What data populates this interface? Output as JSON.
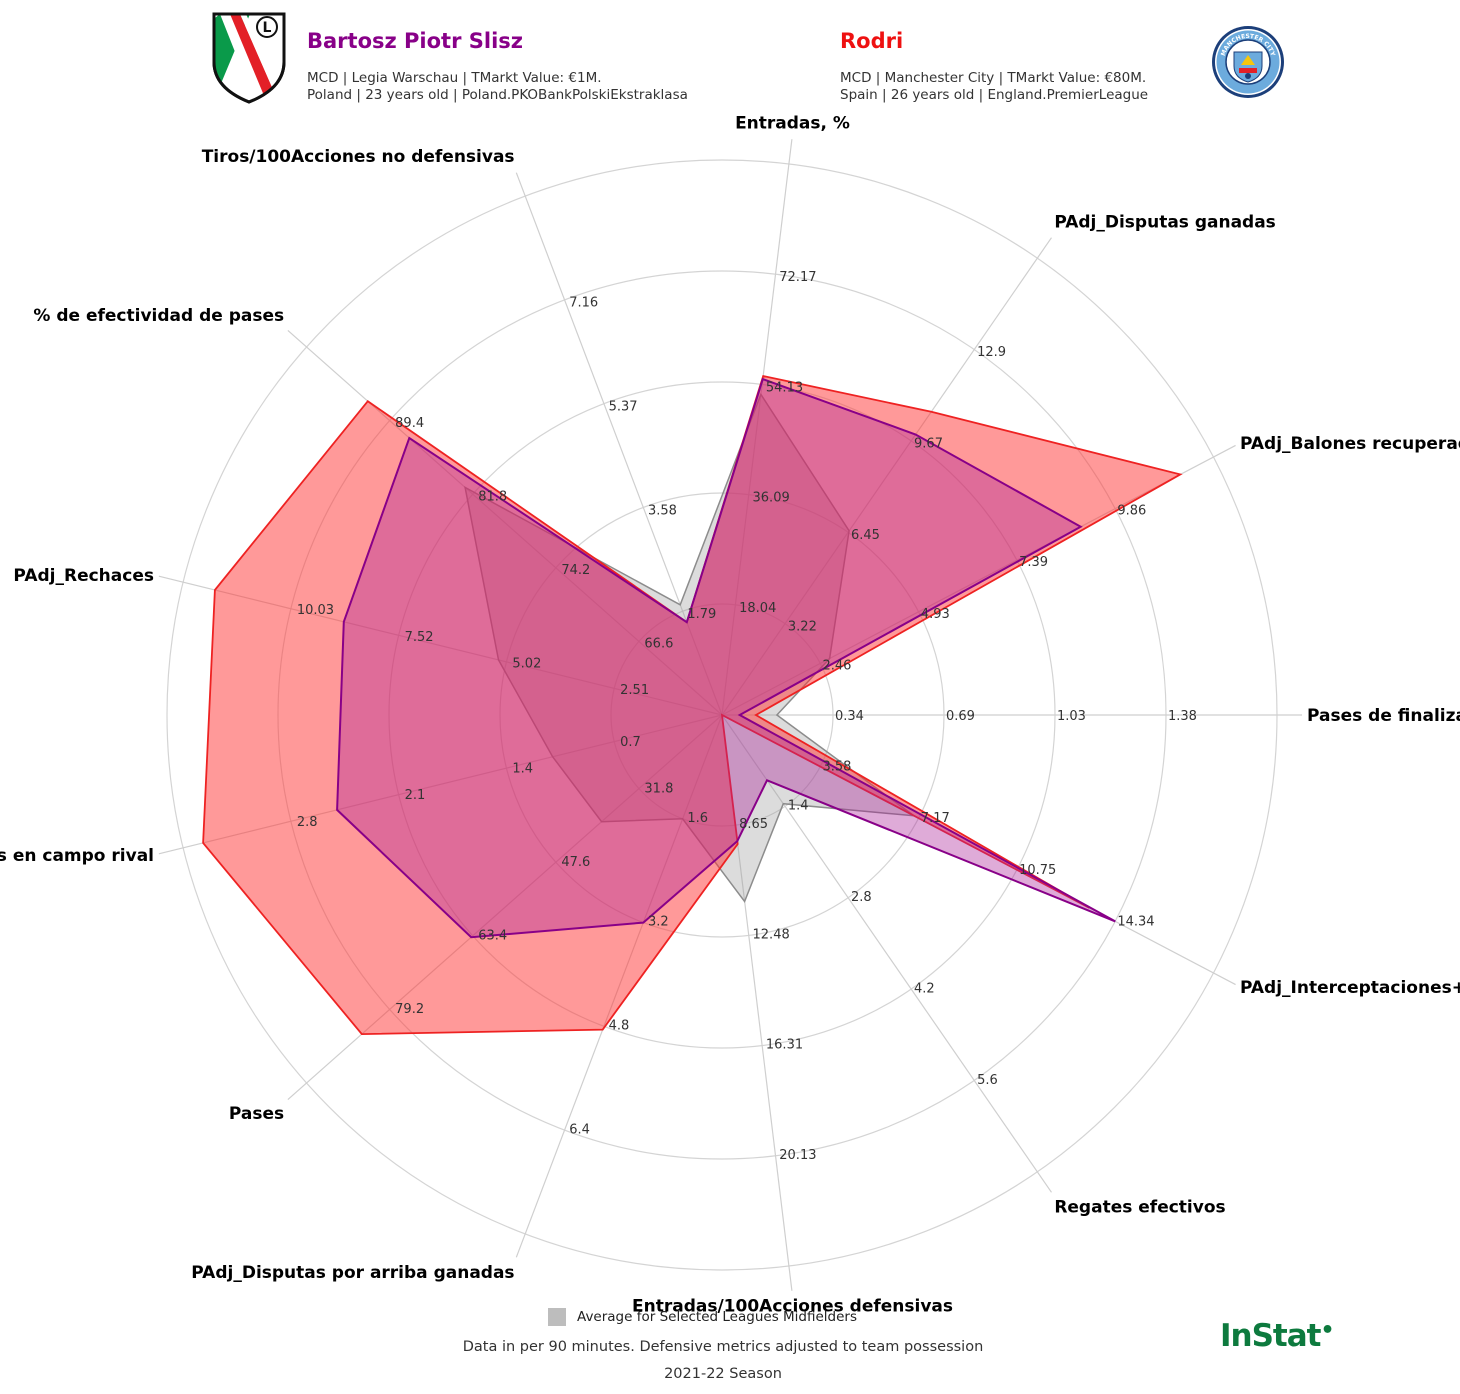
{
  "player1": {
    "name": "Bartosz Piotr Slisz",
    "line1": "MCD | Legia Warschau | TMarkt Value: €1M.",
    "line2": "Poland | 23 years old | Poland.PKOBankPolskiEkstraklasa",
    "color": "#880088"
  },
  "player2": {
    "name": "Rodri",
    "line1": "MCD | Manchester City | TMarkt Value: €80M.",
    "line2": "Spain | 26 years old | England.PremierLeague",
    "color": "#ee1111"
  },
  "crest2_text": "MANCHESTER CITY",
  "legend_label": "Average for Selected Leagues Midfielders",
  "footnote1": "Data in per 90 minutes. Defensive metrics adjusted to team possession",
  "footnote2": "2021-22 Season",
  "brand": "InStat",
  "chart_data": {
    "type": "radar",
    "metrics": [
      {
        "label": "Pases de finalización efectivos",
        "ticks": [
          "0.34",
          "0.69",
          "1.03",
          "1.38"
        ],
        "rmax": 1.72
      },
      {
        "label": "PAdj_Balones recuperados",
        "ticks": [
          "2.46",
          "4.93",
          "7.39",
          "9.86"
        ],
        "rmax": 12.33
      },
      {
        "label": "PAdj_Disputas ganadas",
        "ticks": [
          "3.22",
          "6.45",
          "9.67",
          "12.9"
        ],
        "rmax": 16.12
      },
      {
        "label": "Entradas, %",
        "ticks": [
          "18.04",
          "36.09",
          "54.13",
          "72.17"
        ],
        "rmax": 90.21
      },
      {
        "label": "Tiros/100Acciones no defensivas",
        "ticks": [
          "1.79",
          "3.58",
          "5.37",
          "7.16"
        ],
        "rmax": 8.95
      },
      {
        "label": "% de efectividad de pases",
        "ticks": [
          "66.6",
          "74.2",
          "81.8",
          "89.4"
        ],
        "rmax": 97.0,
        "rmin": 59.0
      },
      {
        "label": "PAdj_Rechaces",
        "ticks": [
          "2.51",
          "5.02",
          "7.52",
          "10.03"
        ],
        "rmax": 12.54
      },
      {
        "label": "Recuperaciones en campo rival",
        "ticks": [
          "0.7",
          "1.4",
          "2.1",
          "2.8"
        ],
        "rmax": 3.5
      },
      {
        "label": "Pases",
        "ticks": [
          "31.8",
          "47.6",
          "63.4",
          "79.2"
        ],
        "rmax": 95.0,
        "rmin": 16.0
      },
      {
        "label": "PAdj_Disputas por arriba ganadas",
        "ticks": [
          "1.6",
          "3.2",
          "4.8",
          "6.4"
        ],
        "rmax": 8.0
      },
      {
        "label": "Entradas/100Acciones defensivas",
        "ticks": [
          "8.65",
          "12.48",
          "16.31",
          "20.13"
        ],
        "rmax": 23.96,
        "rmin": 4.82
      },
      {
        "label": "Regates efectivos",
        "ticks": [
          "1.4",
          "2.8",
          "4.2",
          "5.6"
        ],
        "rmax": 7.0
      },
      {
        "label": "PAdj_Interceptaciones+Entradas",
        "ticks": [
          "3.58",
          "7.17",
          "10.75",
          "14.34"
        ],
        "rmax": 17.92
      }
    ],
    "series": [
      {
        "name": "Average for Selected Leagues Midfielders",
        "color": "#aaaaaa",
        "values": [
          0.17,
          2.7,
          6.5,
          52.5,
          1.9,
          82.5,
          5.2,
          1.1,
          38.9,
          1.6,
          11.3,
          1.36,
          7.0
        ]
      },
      {
        "name": "Rodri",
        "color": "#ee1111",
        "values": [
          0.105,
          11.5,
          10.7,
          55.5,
          1.6,
          91.4,
          11.8,
          3.37,
          84.5,
          4.85,
          9.3,
          0.0,
          13.4
        ]
      },
      {
        "name": "Bartosz Piotr Slisz",
        "color": "#880088",
        "values": [
          0.055,
          9.0,
          9.9,
          55.0,
          1.6,
          87.6,
          8.8,
          2.5,
          63.7,
          3.2,
          9.2,
          1.0,
          14.34
        ]
      }
    ],
    "grid": true
  }
}
